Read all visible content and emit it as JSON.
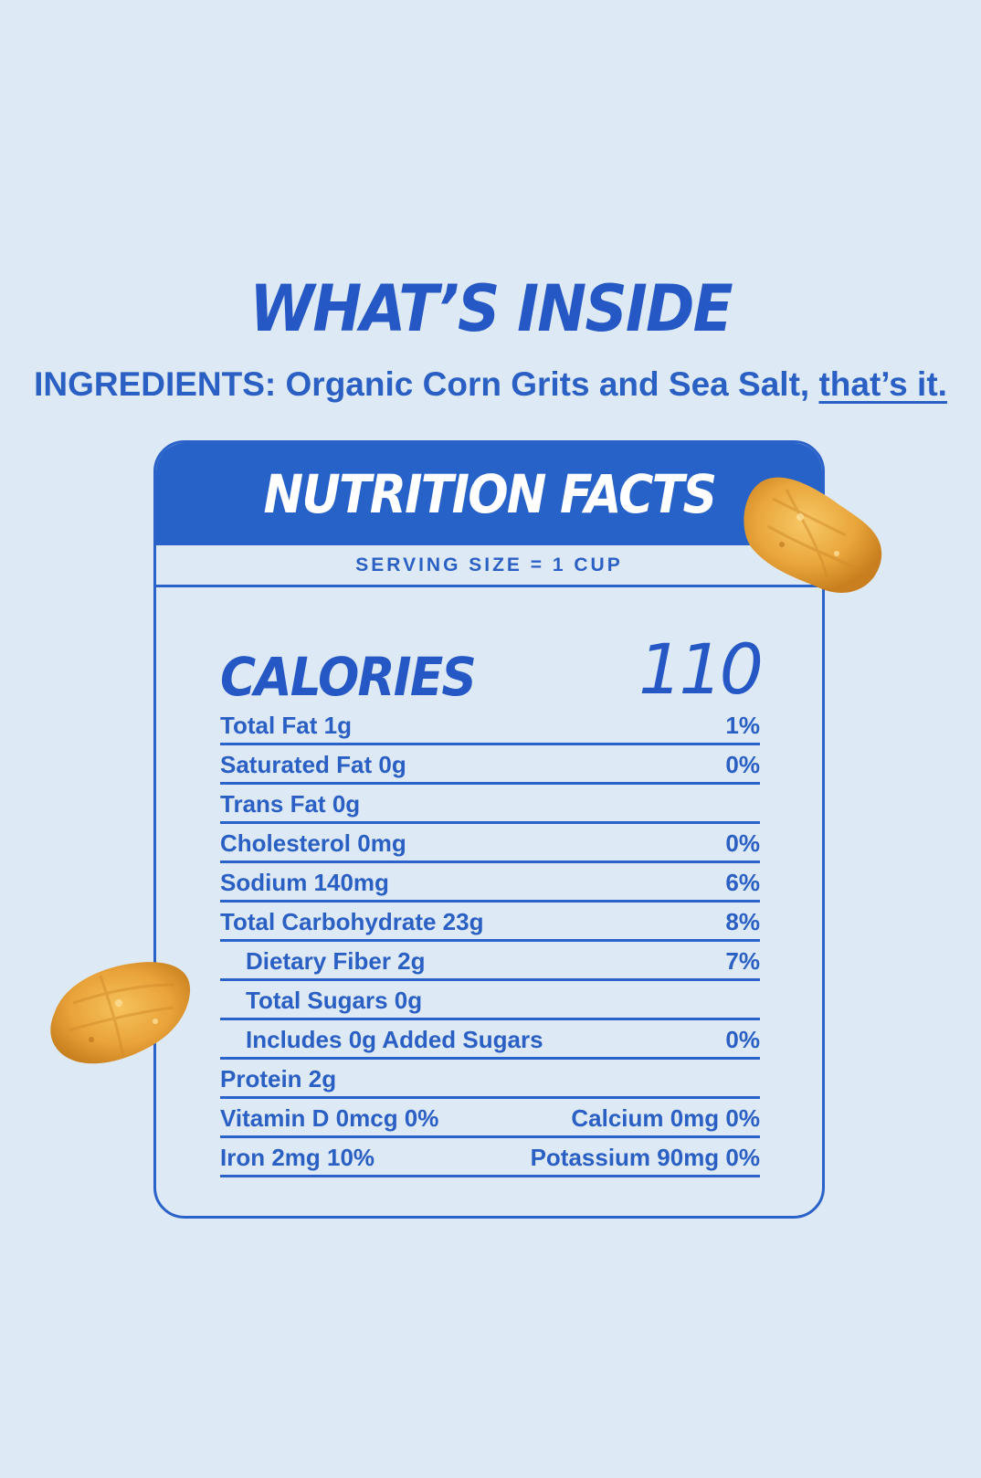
{
  "headline": "WHAT’S INSIDE",
  "ingredients": {
    "text": "INGREDIENTS: Organic Corn Grits and Sea Salt, ",
    "emphasis": "that’s it."
  },
  "nutrition": {
    "title": "NUTRITION FACTS",
    "serving_size": "SERVING SIZE = 1 CUP",
    "calories_label": "CALORIES",
    "calories_value": "110",
    "rows": [
      {
        "label": "Total Fat 1g",
        "value": "1%"
      },
      {
        "label": "Saturated Fat 0g",
        "value": "0%"
      },
      {
        "label": "Trans Fat 0g",
        "value": ""
      },
      {
        "label": "Cholesterol 0mg",
        "value": "0%"
      },
      {
        "label": "Sodium 140mg",
        "value": "6%"
      },
      {
        "label": "Total Carbohydrate 23g",
        "value": "8%"
      },
      {
        "label": "Dietary Fiber 2g",
        "value": "7%"
      },
      {
        "label": "Total Sugars 0g",
        "value": ""
      },
      {
        "label": "Includes 0g Added Sugars",
        "value": "0%"
      },
      {
        "label": "Protein 2g",
        "value": ""
      },
      {
        "label": "Vitamin D 0mcg 0%",
        "value": "Calcium 0mg 0%"
      },
      {
        "label": "Iron 2mg 10%",
        "value": "Potassium 90mg 0%"
      }
    ]
  },
  "colors": {
    "background": "#dde9f5",
    "brand_blue": "#2762c8",
    "text_blue": "#2a5fc4",
    "flake_gold": "#e8a63a"
  },
  "icons": [
    "corn-flake-icon"
  ]
}
